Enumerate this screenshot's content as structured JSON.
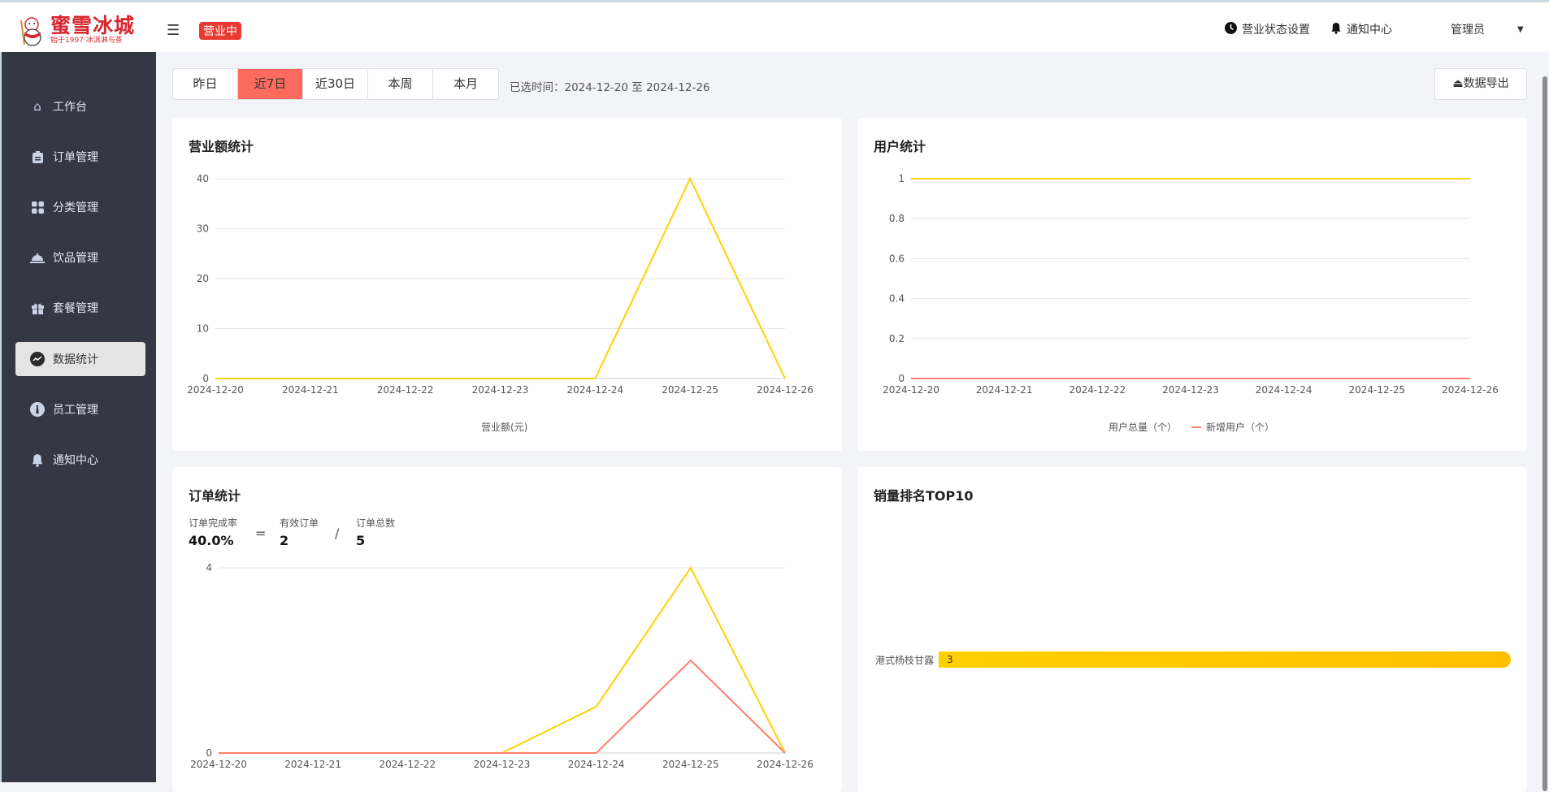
{
  "header": {
    "logo_title": "蜜雪冰城",
    "logo_subtitle": "始于1997·冰淇淋与茶",
    "status_badge": "营业中",
    "status_settings": "营业状态设置",
    "notifications": "通知中心",
    "user": "管理员",
    "colors": {
      "badge": "#e83a30",
      "brand": "#d8262f"
    }
  },
  "sidebar": {
    "items": [
      {
        "label": "工作台",
        "icon": "home-icon"
      },
      {
        "label": "订单管理",
        "icon": "clipboard-icon"
      },
      {
        "label": "分类管理",
        "icon": "grid-icon"
      },
      {
        "label": "饮品管理",
        "icon": "cloche-icon"
      },
      {
        "label": "套餐管理",
        "icon": "gift-icon"
      },
      {
        "label": "数据统计",
        "icon": "chart-icon",
        "active": true
      },
      {
        "label": "员工管理",
        "icon": "employee-icon"
      },
      {
        "label": "通知中心",
        "icon": "bell-icon"
      }
    ]
  },
  "toolbar": {
    "ranges": [
      "昨日",
      "近7日",
      "近30日",
      "本周",
      "本月"
    ],
    "active_range": "近7日",
    "selected_time": "已选时间：2024-12-20 至 2024-12-26",
    "export_label": "数据导出"
  },
  "chart_data": [
    {
      "type": "line",
      "title": "营业额统计",
      "categories": [
        "2024-12-20",
        "2024-12-21",
        "2024-12-22",
        "2024-12-23",
        "2024-12-24",
        "2024-12-25",
        "2024-12-26"
      ],
      "series": [
        {
          "name": "营业额(元)",
          "values": [
            0,
            0,
            0,
            0,
            0,
            40,
            0
          ],
          "color": "#ffd100"
        }
      ],
      "yticks": [
        0,
        10,
        20,
        30,
        40
      ],
      "ylim": [
        0,
        40
      ],
      "grid": true,
      "legend": "bottom"
    },
    {
      "type": "line",
      "title": "用户统计",
      "categories": [
        "2024-12-20",
        "2024-12-21",
        "2024-12-22",
        "2024-12-23",
        "2024-12-24",
        "2024-12-25",
        "2024-12-26"
      ],
      "series": [
        {
          "name": "用户总量（个）",
          "values": [
            1,
            1,
            1,
            1,
            1,
            1,
            1
          ],
          "color": "#ffd100"
        },
        {
          "name": "新增用户（个）",
          "values": [
            0,
            0,
            0,
            0,
            0,
            0,
            0
          ],
          "color": "#fd7f6f"
        }
      ],
      "yticks": [
        "0",
        "0.2",
        "0.4",
        "0.6",
        "0.8",
        "1"
      ],
      "ylim": [
        0,
        1
      ],
      "grid": true,
      "legend": "bottom"
    },
    {
      "type": "line",
      "title": "订单统计",
      "categories": [
        "2024-12-20",
        "2024-12-21",
        "2024-12-22",
        "2024-12-23",
        "2024-12-24",
        "2024-12-25",
        "2024-12-26"
      ],
      "series": [
        {
          "values": [
            0,
            0,
            0,
            0,
            1,
            4,
            0
          ],
          "color": "#ffd100"
        },
        {
          "values": [
            0,
            0,
            0,
            0,
            0,
            2,
            0
          ],
          "color": "#fd7f6f"
        }
      ],
      "yticks": [
        0,
        4
      ],
      "ylim": [
        0,
        4
      ],
      "grid": true
    },
    {
      "type": "bar",
      "title": "销量排名TOP10",
      "categories": [
        "港式杨枝甘露"
      ],
      "values": [
        3
      ],
      "orientation": "horizontal"
    }
  ],
  "order_stats": {
    "rate_label": "订单完成率",
    "rate": "40.0%",
    "eq": "=",
    "valid_label": "有效订单",
    "valid": "2",
    "div": "/",
    "total_label": "订单总数",
    "total": "5"
  }
}
